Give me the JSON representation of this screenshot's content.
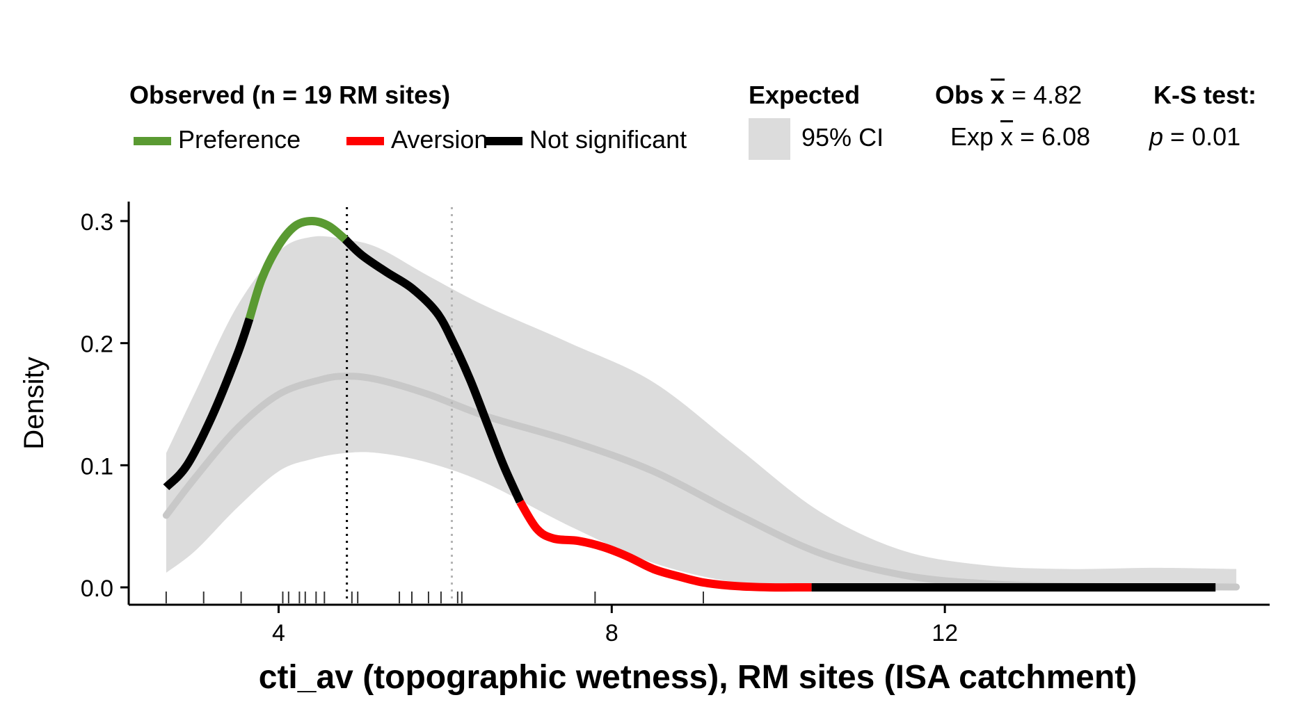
{
  "legend": {
    "observed_title": "Observed (n = 19 RM sites)",
    "items": [
      {
        "label": "Preference",
        "color": "#5a9a32"
      },
      {
        "label": "Aversion",
        "color": "#ff0000"
      },
      {
        "label": "Not significant",
        "color": "#000000"
      }
    ],
    "expected_title": "Expected",
    "ci_label": "95% CI",
    "obs_mean_label": "Obs",
    "obs_mean_value": "= 4.82",
    "exp_mean_label": "Exp",
    "exp_mean_value": "= 6.08",
    "ks_title": "K-S test:",
    "p_label": "p",
    "p_value": "= 0.01",
    "xbar": "x"
  },
  "chart_data": {
    "type": "line",
    "xlabel": "cti_av (topographic wetness), RM sites (ISA catchment)",
    "ylabel": "Density",
    "xlim": [
      2.2,
      15.9
    ],
    "ylim": [
      0,
      0.3
    ],
    "x_ticks": [
      4,
      8,
      12
    ],
    "y_ticks": [
      0.0,
      0.1,
      0.2,
      0.3
    ],
    "y_tick_labels": [
      "0.0",
      "0.1",
      "0.2",
      "0.3"
    ],
    "observed_mean": 4.82,
    "expected_mean": 6.08,
    "rug": [
      2.65,
      3.1,
      3.55,
      4.05,
      4.12,
      4.25,
      4.32,
      4.45,
      4.55,
      4.88,
      4.95,
      5.45,
      5.6,
      5.8,
      5.95,
      6.15,
      6.2,
      7.8,
      9.1
    ],
    "expected_mean_curve": {
      "x": [
        2.65,
        3.0,
        3.5,
        4.0,
        4.5,
        4.82,
        5.2,
        5.8,
        6.5,
        7.5,
        8.5,
        9.5,
        10.5,
        11.5,
        12.5,
        13.5,
        14.5,
        15.5
      ],
      "y": [
        0.059,
        0.09,
        0.13,
        0.158,
        0.17,
        0.173,
        0.17,
        0.158,
        0.14,
        0.12,
        0.095,
        0.06,
        0.028,
        0.01,
        0.003,
        0.001,
        0.0005,
        0.0003
      ]
    },
    "ci_band": {
      "x": [
        2.65,
        3.0,
        3.5,
        4.0,
        4.4,
        4.8,
        5.2,
        5.8,
        6.5,
        7.5,
        8.5,
        9.5,
        10.5,
        11.5,
        12.5,
        13.5,
        14.5,
        15.5
      ],
      "lower": [
        0.012,
        0.03,
        0.065,
        0.095,
        0.105,
        0.11,
        0.11,
        0.102,
        0.085,
        0.05,
        0.02,
        0.004,
        0.0,
        0.0,
        0.0,
        0.0,
        0.0,
        0.0
      ],
      "upper": [
        0.11,
        0.16,
        0.23,
        0.275,
        0.287,
        0.285,
        0.278,
        0.255,
        0.23,
        0.2,
        0.168,
        0.115,
        0.062,
        0.03,
        0.018,
        0.015,
        0.016,
        0.015
      ]
    },
    "observed_curve": [
      {
        "significance": "Not significant",
        "x": [
          2.65,
          2.9,
          3.2,
          3.5,
          3.65
        ],
        "y": [
          0.082,
          0.1,
          0.14,
          0.19,
          0.22
        ]
      },
      {
        "significance": "Preference",
        "x": [
          3.65,
          3.8,
          4.0,
          4.2,
          4.4,
          4.6,
          4.8
        ],
        "y": [
          0.22,
          0.253,
          0.28,
          0.296,
          0.3,
          0.296,
          0.285
        ]
      },
      {
        "significance": "Not significant",
        "x": [
          4.8,
          5.0,
          5.3,
          5.6,
          5.9,
          6.1,
          6.3,
          6.5,
          6.7,
          6.9
        ],
        "y": [
          0.285,
          0.272,
          0.258,
          0.245,
          0.225,
          0.2,
          0.17,
          0.135,
          0.1,
          0.07
        ]
      },
      {
        "significance": "Aversion",
        "x": [
          6.9,
          7.1,
          7.3,
          7.6,
          7.9,
          8.2,
          8.5,
          8.8,
          9.1,
          9.5,
          9.9,
          10.3,
          10.4
        ],
        "y": [
          0.07,
          0.048,
          0.04,
          0.038,
          0.033,
          0.025,
          0.015,
          0.009,
          0.004,
          0.001,
          0.0,
          0.0,
          0.0
        ]
      },
      {
        "significance": "Not significant",
        "x": [
          10.4,
          12.0,
          14.0,
          15.25
        ],
        "y": [
          0.0,
          0.0,
          0.0,
          0.0
        ]
      }
    ]
  }
}
